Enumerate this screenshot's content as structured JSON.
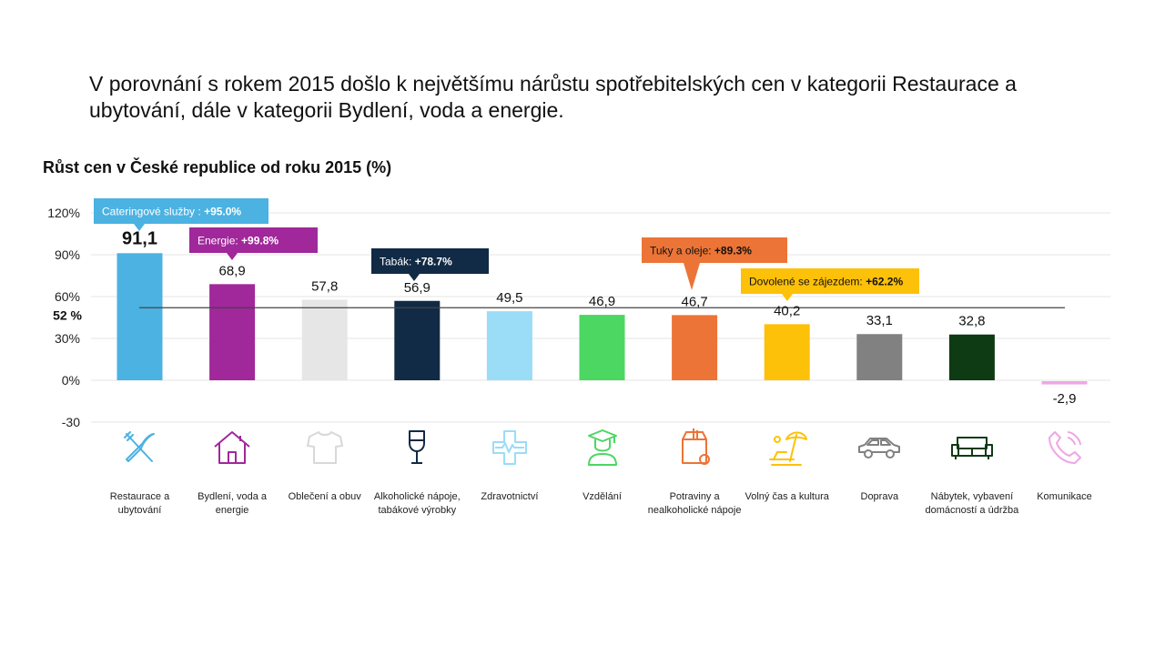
{
  "headline": "V porovnání s rokem 2015 došlo k největšímu nárůstu spotřebitelských cen v kategorii Restaurace a ubytování, dále v kategorii Bydlení, voda a energie.",
  "chart_data": {
    "type": "bar",
    "title": "Růst cen v České republice od roku 2015 (%)",
    "xlabel": "",
    "ylabel": "",
    "ylim": [
      -30,
      120
    ],
    "yticks": [
      120,
      90,
      60,
      30,
      0,
      -30
    ],
    "ytick_labels": [
      "120%",
      "90%",
      "60%",
      "30%",
      "0%",
      "-30"
    ],
    "grid": true,
    "categories": [
      "Restaurace a ubytování",
      "Bydlení, voda a energie",
      "Oblečení a obuv",
      "Alkoholické nápoje, tabákové výrobky",
      "Zdravotnictví",
      "Vzdělání",
      "Potraviny a nealkoholické nápoje",
      "Volný čas a kultura",
      "Doprava",
      "Nábytek, vybavení domácností a údržba",
      "Komunikace"
    ],
    "values": [
      91.1,
      68.9,
      57.8,
      56.9,
      49.5,
      46.9,
      46.7,
      40.2,
      33.1,
      32.8,
      -2.9
    ],
    "value_labels": [
      "91,1",
      "68,9",
      "57,8",
      "56,9",
      "49,5",
      "46,9",
      "46,7",
      "40,2",
      "33,1",
      "32,8",
      "-2,9"
    ],
    "colors": [
      "#4BB2E2",
      "#A0289A",
      "#E6E6E6",
      "#112A45",
      "#9BDCF7",
      "#4CD662",
      "#EC7436",
      "#FEC109",
      "#818181",
      "#0E3A14",
      "#EFA6E6"
    ],
    "icons": [
      "fork-knife-icon",
      "house-icon",
      "tshirt-icon",
      "wine-glass-icon",
      "medical-cross-icon",
      "graduate-icon",
      "grocery-bag-icon",
      "beach-umbrella-icon",
      "car-icon",
      "sofa-icon",
      "phone-icon"
    ],
    "reference_line": {
      "value": 52,
      "label": "52 %"
    },
    "annotations": [
      {
        "category_index": 0,
        "text": "Cateringové služby : ",
        "bold": "+95.0%",
        "bg": "#4BB2E2",
        "color": "#ffffff"
      },
      {
        "category_index": 1,
        "text": "Energie: ",
        "bold": "+99.8%",
        "bg": "#A0289A",
        "color": "#ffffff"
      },
      {
        "category_index": 3,
        "text": "Tabák: ",
        "bold": "+78.7%",
        "bg": "#112A45",
        "color": "#ffffff"
      },
      {
        "category_index": 6,
        "text": "Tuky a oleje: ",
        "bold": "+89.3%",
        "bg": "#EC7436",
        "color": "#111111"
      },
      {
        "category_index": 7,
        "text": "Dovolené se zájezdem: ",
        "bold": "+62.2%",
        "bg": "#FEC109",
        "color": "#111111"
      }
    ]
  }
}
